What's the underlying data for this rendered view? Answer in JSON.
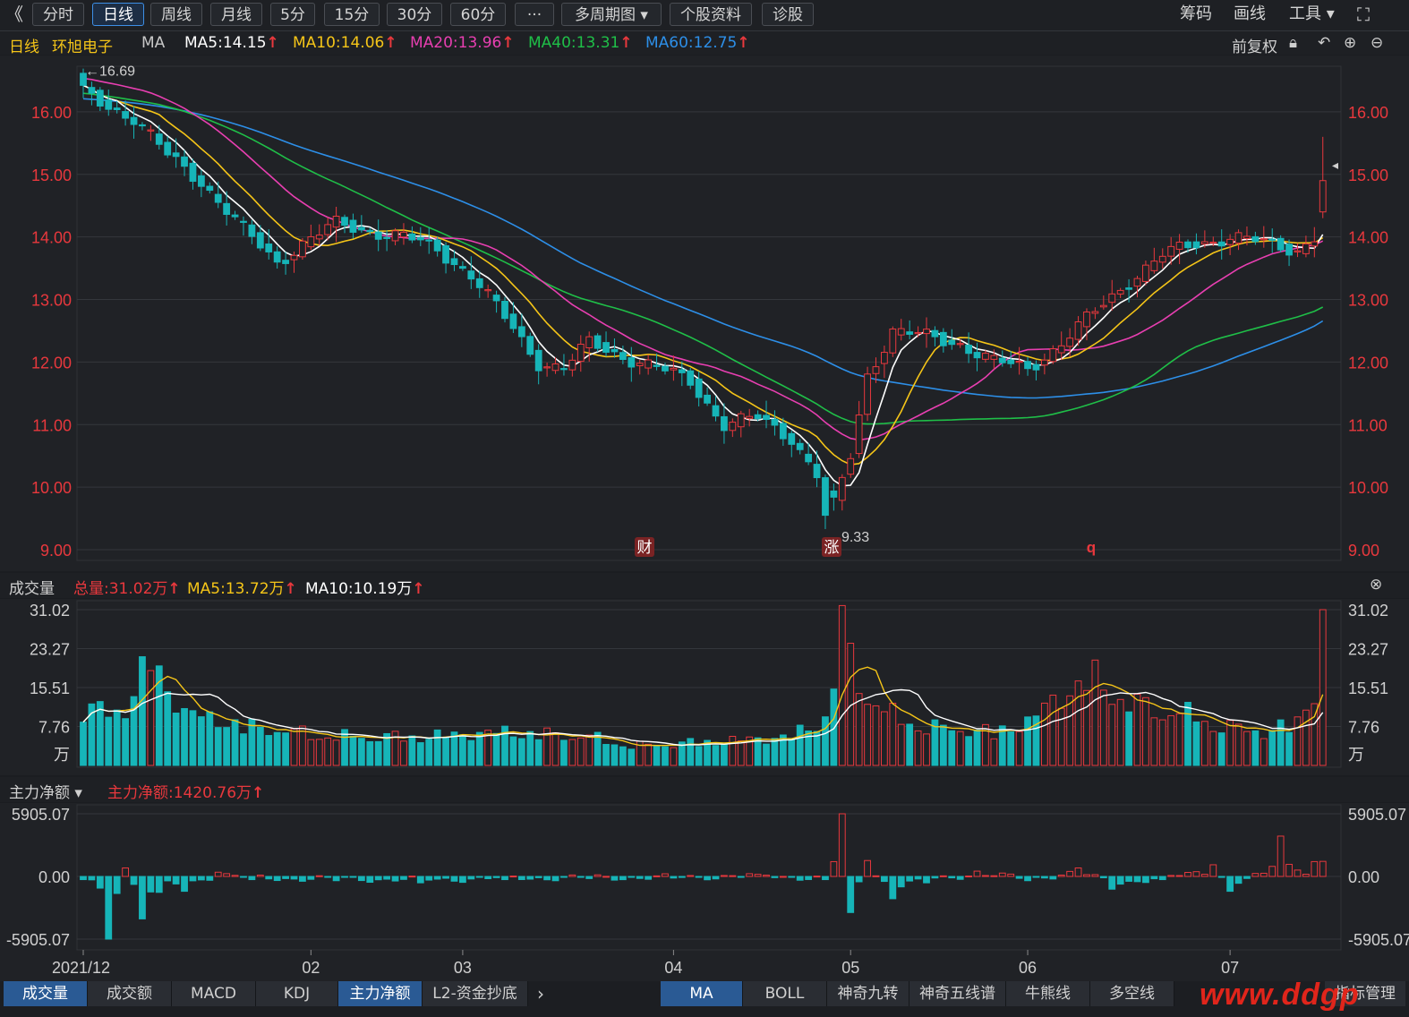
{
  "toolbar": {
    "back_glyph": "《",
    "buttons": [
      "分时",
      "日线",
      "周线",
      "月线",
      "5分",
      "15分",
      "30分",
      "60分",
      "···",
      "多周期图 ▾",
      "个股资料",
      "诊股"
    ],
    "active": "日线",
    "right": [
      "筹码",
      "画线",
      "工具 ▾"
    ]
  },
  "info": {
    "period": "日线",
    "stock": "环旭电子",
    "indicator": "MA",
    "ma5": "MA5:14.15",
    "ma10": "MA10:14.06",
    "ma20": "MA20:13.96",
    "ma40": "MA40:13.31",
    "ma60": "MA60:12.75",
    "adjust": "前复权"
  },
  "colors": {
    "up": "#e8383d",
    "down": "#16b5b8",
    "ma5": "#ffffff",
    "ma10": "#f5c518",
    "ma20": "#e83fb1",
    "ma40": "#1fbf48",
    "ma60": "#2d8fe8"
  },
  "volume": {
    "label": "成交量",
    "total": "总量:31.02万",
    "ma5": "MA5:13.72万",
    "ma10": "MA10:10.19万",
    "ticks": [
      "31.02",
      "23.27",
      "15.51",
      "7.76"
    ],
    "unit": "万"
  },
  "moneyflow": {
    "label": "主力净额 ▾",
    "value": "主力净额:1420.76万",
    "ticks": [
      "5905.07",
      "0.00",
      "-5905.07"
    ]
  },
  "price_axis": [
    "16.00",
    "15.00",
    "14.00",
    "13.00",
    "12.00",
    "11.00",
    "10.00",
    "9.00"
  ],
  "markers": {
    "high": "←16.69",
    "low": "←9.33",
    "events": [
      "财",
      "涨",
      "q"
    ]
  },
  "x_labels": [
    "2021/12",
    "02",
    "03",
    "04",
    "05",
    "06",
    "07"
  ],
  "bottom_tabs_left": [
    "成交量",
    "成交额",
    "MACD",
    "KDJ",
    "主力净额",
    "L2-资金抄底"
  ],
  "bottom_tabs_right": [
    "MA",
    "BOLL",
    "神奇九转",
    "神奇五线谱",
    "牛熊线",
    "多空线"
  ],
  "bottom_right": "指标管理",
  "watermark": "www.ddgp",
  "chart_data": {
    "type": "candlestick",
    "series_note": "",
    "high": 16.69,
    "low": 9.33,
    "ylim": [
      8.8,
      16.9
    ],
    "last_close": 14.9,
    "anchors": [
      [
        0,
        16.3
      ],
      [
        3,
        16.1
      ],
      [
        6,
        15.9
      ],
      [
        10,
        15.3
      ],
      [
        14,
        14.9
      ],
      [
        19,
        14.1
      ],
      [
        23,
        13.6
      ],
      [
        26,
        13.9
      ],
      [
        30,
        14.2
      ],
      [
        34,
        14.1
      ],
      [
        38,
        14.0
      ],
      [
        42,
        13.8
      ],
      [
        46,
        13.4
      ],
      [
        50,
        12.7
      ],
      [
        54,
        12.0
      ],
      [
        57,
        11.9
      ],
      [
        60,
        12.3
      ],
      [
        64,
        12.1
      ],
      [
        68,
        11.9
      ],
      [
        72,
        11.7
      ],
      [
        76,
        11.0
      ],
      [
        80,
        11.1
      ],
      [
        84,
        10.8
      ],
      [
        87,
        10.2
      ],
      [
        89,
        9.7
      ],
      [
        91,
        10.5
      ],
      [
        93,
        11.8
      ],
      [
        96,
        12.5
      ],
      [
        100,
        12.4
      ],
      [
        104,
        12.3
      ],
      [
        108,
        12.0
      ],
      [
        112,
        11.9
      ],
      [
        116,
        12.3
      ],
      [
        120,
        12.8
      ],
      [
        124,
        13.3
      ],
      [
        128,
        13.7
      ],
      [
        132,
        13.9
      ],
      [
        136,
        14.0
      ],
      [
        140,
        13.9
      ],
      [
        144,
        13.8
      ],
      [
        146,
        14.0
      ],
      [
        147,
        14.9
      ]
    ],
    "volume_anchors": [
      [
        0,
        11
      ],
      [
        5,
        12
      ],
      [
        8,
        22
      ],
      [
        12,
        11
      ],
      [
        20,
        8
      ],
      [
        30,
        6
      ],
      [
        40,
        6
      ],
      [
        50,
        7
      ],
      [
        60,
        6
      ],
      [
        65,
        4
      ],
      [
        75,
        5
      ],
      [
        84,
        6
      ],
      [
        88,
        10
      ],
      [
        90,
        28
      ],
      [
        92,
        18
      ],
      [
        95,
        11
      ],
      [
        100,
        8
      ],
      [
        108,
        7
      ],
      [
        112,
        9
      ],
      [
        116,
        15
      ],
      [
        120,
        18
      ],
      [
        124,
        13
      ],
      [
        130,
        11
      ],
      [
        136,
        8
      ],
      [
        140,
        7
      ],
      [
        144,
        9
      ],
      [
        146,
        16
      ],
      [
        147,
        31
      ]
    ],
    "moneyflow_anchors": [
      [
        0,
        -300
      ],
      [
        2,
        -1100
      ],
      [
        3,
        -5905
      ],
      [
        5,
        800
      ],
      [
        7,
        -4000
      ],
      [
        9,
        -1500
      ],
      [
        12,
        -1400
      ],
      [
        16,
        400
      ],
      [
        20,
        -300
      ],
      [
        30,
        -400
      ],
      [
        40,
        -600
      ],
      [
        50,
        -300
      ],
      [
        60,
        -200
      ],
      [
        70,
        -150
      ],
      [
        80,
        200
      ],
      [
        88,
        -300
      ],
      [
        90,
        5905
      ],
      [
        91,
        -3400
      ],
      [
        93,
        1500
      ],
      [
        96,
        -2100
      ],
      [
        100,
        -600
      ],
      [
        106,
        500
      ],
      [
        112,
        -400
      ],
      [
        118,
        800
      ],
      [
        122,
        -1200
      ],
      [
        128,
        -300
      ],
      [
        134,
        1100
      ],
      [
        136,
        -1400
      ],
      [
        140,
        300
      ],
      [
        142,
        3800
      ],
      [
        144,
        600
      ],
      [
        146,
        1400
      ],
      [
        147,
        1420
      ]
    ]
  }
}
